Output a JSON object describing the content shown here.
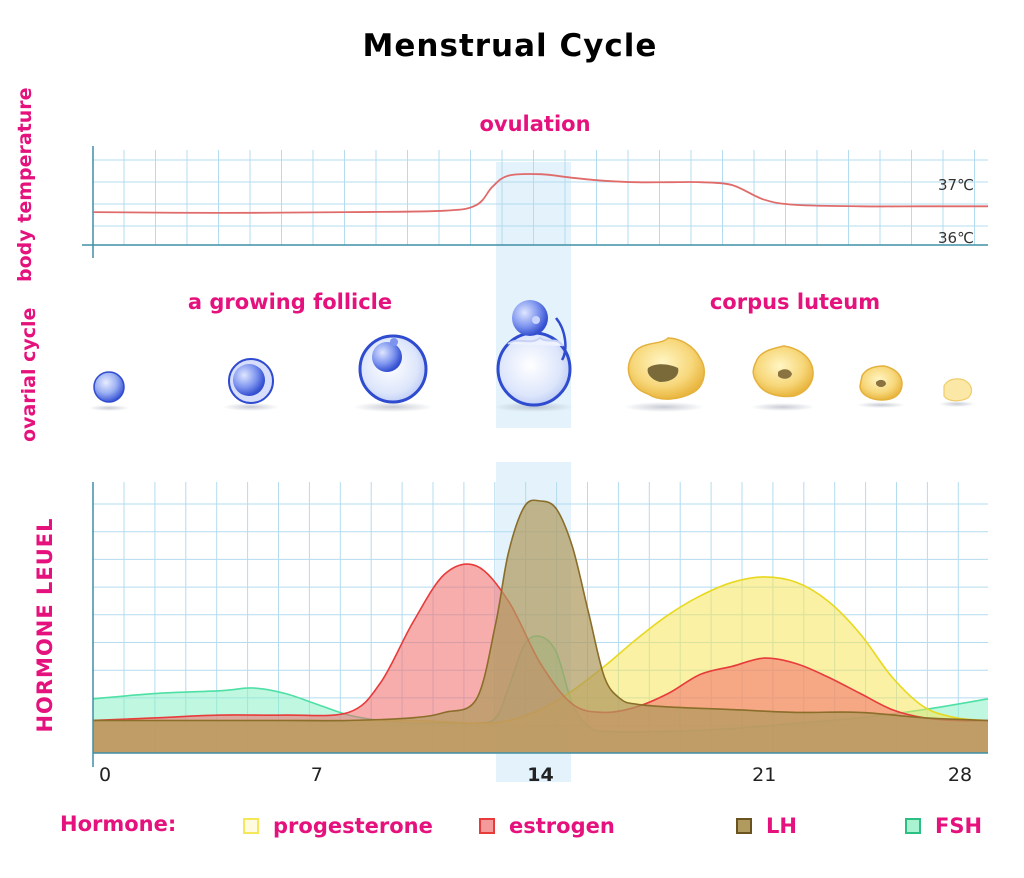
{
  "title": "Menstrual Cycle",
  "sections": {
    "body_temperature": "body temperature",
    "ovarian_cycle": "ovarial cycle",
    "hormone_level": "HORMONE LEUEL"
  },
  "headings": {
    "ovulation": "ovulation",
    "growing_follicle": "a growing follicle",
    "corpus_luteum": "corpus luteum"
  },
  "temperature": {
    "label_high": "37℃",
    "label_low": "36℃"
  },
  "legend": {
    "title": "Hormone:",
    "items": [
      {
        "name": "progesterone",
        "color": "#f5e65a"
      },
      {
        "name": "estrogen",
        "color": "#f26a6a"
      },
      {
        "name": "LH",
        "color": "#a8894a"
      },
      {
        "name": "FSH",
        "color": "#4ee0a5"
      }
    ]
  },
  "colors": {
    "accent": "#e5127d",
    "grid": "#b3dcef",
    "axis": "#3f8fa5",
    "temperature_line": "#e06b6b",
    "ovulation_band": "#d9eefa"
  },
  "chart_data": {
    "type": "area",
    "xlabel": "",
    "ylabel": "HORMONE LEUEL",
    "xlim": [
      0,
      28
    ],
    "x_ticks": [
      "0",
      "7",
      "14",
      "21",
      "28"
    ],
    "x_tick_values": [
      0,
      7,
      14,
      21,
      28
    ],
    "highlight_tick": "14",
    "ylim": [
      0,
      10
    ],
    "grid": true,
    "legend": "bottom",
    "series": [
      {
        "name": "progesterone",
        "color": "#f5e65a",
        "stroke": "#e8d81f",
        "x": [
          0,
          2,
          4,
          6,
          8,
          10,
          12,
          13,
          14,
          15,
          16,
          17,
          18,
          19,
          20,
          21,
          22,
          23,
          24,
          25,
          26,
          27,
          28
        ],
        "y": [
          1.2,
          1.2,
          1.2,
          1.2,
          1.2,
          1.2,
          1.1,
          1.2,
          1.6,
          2.3,
          3.2,
          4.2,
          5.1,
          5.8,
          6.3,
          6.5,
          6.3,
          5.6,
          4.4,
          2.8,
          1.7,
          1.3,
          1.2
        ]
      },
      {
        "name": "estrogen",
        "color": "#f26a6a",
        "stroke": "#e83b3b",
        "x": [
          0,
          2,
          4,
          6,
          8,
          9,
          10,
          11,
          12,
          13,
          14,
          15,
          16,
          17,
          18,
          19,
          20,
          21,
          22,
          23,
          24,
          25,
          26,
          27,
          28
        ],
        "y": [
          1.2,
          1.3,
          1.4,
          1.4,
          1.5,
          2.6,
          4.8,
          6.6,
          6.9,
          5.6,
          3.3,
          1.8,
          1.5,
          1.7,
          2.2,
          2.9,
          3.2,
          3.5,
          3.3,
          2.8,
          2.2,
          1.6,
          1.3,
          1.2,
          1.2
        ]
      },
      {
        "name": "LH",
        "color": "#b09a5e",
        "stroke": "#8a6e2a",
        "x": [
          0,
          2,
          4,
          6,
          8,
          10,
          11,
          12,
          12.6,
          13,
          13.5,
          14,
          14.5,
          15,
          15.5,
          16,
          16.5,
          17,
          18,
          20,
          22,
          24,
          26,
          28
        ],
        "y": [
          1.2,
          1.2,
          1.2,
          1.2,
          1.2,
          1.3,
          1.5,
          2.0,
          4.8,
          7.4,
          9.1,
          9.3,
          9.0,
          7.6,
          5.2,
          2.8,
          2.0,
          1.8,
          1.7,
          1.6,
          1.5,
          1.5,
          1.3,
          1.2
        ]
      },
      {
        "name": "FSH",
        "color": "#8af0c6",
        "stroke": "#4ee0a5",
        "x": [
          0,
          2,
          4,
          5,
          6,
          7,
          8,
          9,
          10,
          11,
          12,
          12.6,
          13,
          13.5,
          14,
          14.5,
          15,
          15.5,
          16,
          18,
          20,
          22,
          24,
          26,
          28
        ],
        "y": [
          2.0,
          2.2,
          2.3,
          2.4,
          2.2,
          1.8,
          1.4,
          1.2,
          1.1,
          1.1,
          1.1,
          1.3,
          2.4,
          4.0,
          4.3,
          3.7,
          1.8,
          1.0,
          0.8,
          0.8,
          0.9,
          1.1,
          1.3,
          1.6,
          2.0
        ]
      }
    ],
    "temperature": {
      "x": [
        0,
        4,
        8,
        11,
        12,
        12.5,
        13,
        14,
        15,
        16,
        17,
        18,
        19,
        20,
        21,
        22,
        24,
        26,
        28
      ],
      "y": [
        36.45,
        36.44,
        36.45,
        36.47,
        36.55,
        36.8,
        36.95,
        36.97,
        36.92,
        36.88,
        36.86,
        36.86,
        36.86,
        36.82,
        36.62,
        36.55,
        36.53,
        36.53,
        36.53
      ],
      "ylim": [
        36,
        37
      ]
    }
  },
  "follicles": [
    "follicle-1",
    "follicle-2",
    "follicle-3",
    "ovulating-follicle"
  ],
  "corpus_luteum_stages": [
    "corpus-luteum-1",
    "corpus-luteum-2",
    "corpus-luteum-3",
    "corpus-luteum-4"
  ]
}
